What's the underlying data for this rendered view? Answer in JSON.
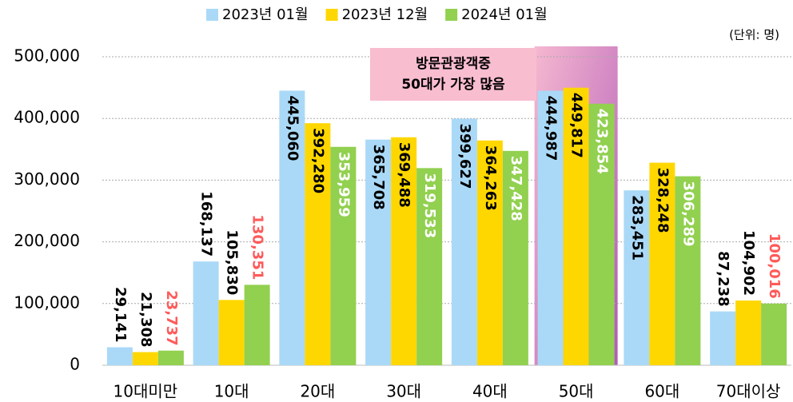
{
  "chart_data": {
    "type": "bar",
    "categories": [
      "10대미만",
      "10대",
      "20대",
      "30대",
      "40대",
      "50대",
      "60대",
      "70대이상"
    ],
    "series": [
      {
        "name": "2023년 01월",
        "color": "#aad9f7",
        "values": [
          29141,
          168137,
          445060,
          365708,
          399627,
          444987,
          283451,
          87238
        ],
        "value_labels": [
          "29,141",
          "168,137",
          "445,060",
          "365,708",
          "399,627",
          "444,987",
          "283,451",
          "87,238"
        ]
      },
      {
        "name": "2023년 12월",
        "color": "#ffd700",
        "values": [
          21308,
          105830,
          392280,
          369488,
          364263,
          449817,
          328248,
          104902
        ],
        "value_labels": [
          "21,308",
          "105,830",
          "392,280",
          "369,488",
          "364,263",
          "449,817",
          "328,248",
          "104,902"
        ]
      },
      {
        "name": "2024년 01월",
        "color": "#92d050",
        "values": [
          23737,
          130351,
          353959,
          319533,
          347428,
          423854,
          306289,
          100016
        ],
        "value_labels": [
          "23,737",
          "130,351",
          "353,959",
          "319,533",
          "347,428",
          "423,854",
          "306,289",
          "100,016"
        ]
      }
    ],
    "ylim": [
      0,
      500000
    ],
    "yticks": [
      0,
      {
        "value": 100000,
        "label": "100,000"
      },
      {
        "value": 200000,
        "label": "200,000"
      },
      {
        "value": 300000,
        "label": "300,000"
      },
      {
        "value": 400000,
        "label": "400,000"
      },
      {
        "value": 500000,
        "label": "500,000"
      }
    ],
    "grid": true,
    "legend": "top",
    "unit": "(단위: 명)",
    "annotation": [
      "방문관광객중",
      "50대가 가장 많음"
    ],
    "highlight": 5
  }
}
